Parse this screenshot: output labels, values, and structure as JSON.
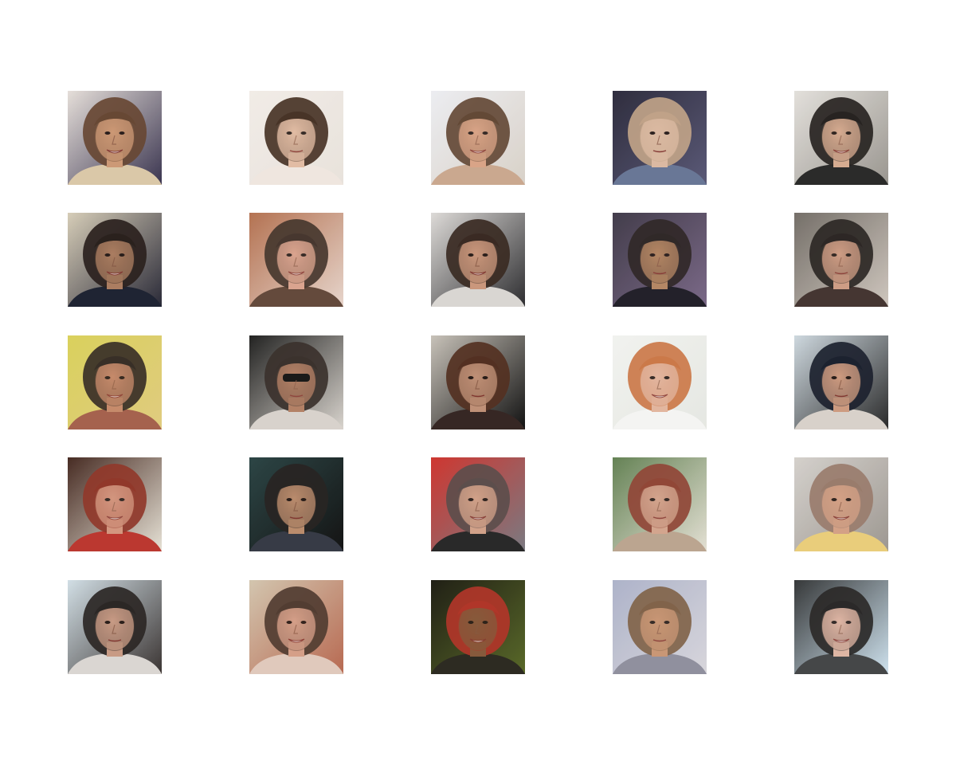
{
  "figure": {
    "rows": 5,
    "cols": 5,
    "tiles": [
      {
        "bg": "#f4eee6",
        "bg2": "#3a3550",
        "skin": "#d8a27a",
        "hair": "#6b4a32",
        "shirt": "#e8d5b0",
        "smile": true,
        "glasses": false
      },
      {
        "bg": "#f2ede8",
        "bg2": "#e9e2dc",
        "skin": "#e2b9a0",
        "hair": "#3b2518",
        "shirt": "#f0e6e0",
        "smile": false,
        "glasses": false
      },
      {
        "bg": "#eef0f4",
        "bg2": "#d9d2c8",
        "skin": "#d9a182",
        "hair": "#5a3e2a",
        "shirt": "#c9a58a",
        "smile": true,
        "glasses": false
      },
      {
        "bg": "#2c2a3a",
        "bg2": "#5b5a78",
        "skin": "#e6c2a6",
        "hair": "#c9a98a",
        "shirt": "#6b7a9a",
        "smile": false,
        "glasses": false
      },
      {
        "bg": "#e9e6e2",
        "bg2": "#9a9690",
        "skin": "#dcae92",
        "hair": "#1e1a18",
        "shirt": "#222222",
        "smile": true,
        "glasses": false
      },
      {
        "bg": "#e6dcc4",
        "bg2": "#2a2a38",
        "skin": "#b78565",
        "hair": "#2b211c",
        "shirt": "#1f2433",
        "smile": true,
        "glasses": false
      },
      {
        "bg": "#b06a48",
        "bg2": "#e7d5cc",
        "skin": "#d9a08a",
        "hair": "#3a2a22",
        "shirt": "#5a3e30",
        "smile": true,
        "glasses": false
      },
      {
        "bg": "#ece9e6",
        "bg2": "#2d2d30",
        "skin": "#d7a083",
        "hair": "#3b2a22",
        "shirt": "#e8e4e0",
        "smile": true,
        "glasses": false
      },
      {
        "bg": "#3e3a46",
        "bg2": "#7b6a88",
        "skin": "#b98a62",
        "hair": "#2a2420",
        "shirt": "#1c1c22",
        "smile": false,
        "glasses": false
      },
      {
        "bg": "#6e6862",
        "bg2": "#cfc6be",
        "skin": "#cf9a80",
        "hair": "#201a18",
        "shirt": "#3a2a26",
        "smile": false,
        "glasses": false
      },
      {
        "bg": "#d9d25a",
        "bg2": "#e0cc80",
        "skin": "#c4866a",
        "hair": "#2a2220",
        "shirt": "#a05a4a",
        "smile": true,
        "glasses": false
      },
      {
        "bg": "#141414",
        "bg2": "#d9d4ce",
        "skin": "#b07a5e",
        "hair": "#2e2420",
        "shirt": "#d8d2cc",
        "smile": false,
        "glasses": true
      },
      {
        "bg": "#d8d2c8",
        "bg2": "#121212",
        "skin": "#cf9c80",
        "hair": "#5a3424",
        "shirt": "#3a2a26",
        "smile": false,
        "glasses": false
      },
      {
        "bg": "#f2f3f0",
        "bg2": "#e6e8e2",
        "skin": "#e2b29a",
        "hair": "#c9703c",
        "shirt": "#f6f6f4",
        "smile": true,
        "glasses": false
      },
      {
        "bg": "#dde8ef",
        "bg2": "#2a2a2a",
        "skin": "#dca588",
        "hair": "#1c2230",
        "shirt": "#e8e0d8",
        "smile": false,
        "glasses": false
      },
      {
        "bg": "#3a1c14",
        "bg2": "#e7e2d6",
        "skin": "#d29078",
        "hair": "#8a2a1c",
        "shirt": "#b82a22",
        "smile": true,
        "glasses": false
      },
      {
        "bg": "#2f4a4a",
        "bg2": "#141414",
        "skin": "#c89674",
        "hair": "#2a2624",
        "shirt": "#3a3e4a",
        "smile": false,
        "glasses": false
      },
      {
        "bg": "#d6312a",
        "bg2": "#7a7a82",
        "skin": "#d8a48a",
        "hair": "#5a4a48",
        "shirt": "#222222",
        "smile": true,
        "glasses": false
      },
      {
        "bg": "#5a7a4a",
        "bg2": "#e4e0d4",
        "skin": "#d2a088",
        "hair": "#8a3a2a",
        "shirt": "#b8a08a",
        "smile": false,
        "glasses": false
      },
      {
        "bg": "#dad6d2",
        "bg2": "#9e9892",
        "skin": "#d8a286",
        "hair": "#9a7a6a",
        "shirt": "#f0d27a",
        "smile": true,
        "glasses": false
      },
      {
        "bg": "#dfeef5",
        "bg2": "#3a3432",
        "skin": "#d4a48c",
        "hair": "#2a2624",
        "shirt": "#e8e4e0",
        "smile": false,
        "glasses": false
      },
      {
        "bg": "#d6ceb8",
        "bg2": "#b86a52",
        "skin": "#d8a48e",
        "hair": "#4a3a30",
        "shirt": "#e4d2c6",
        "smile": true,
        "glasses": false
      },
      {
        "bg": "#1c1a14",
        "bg2": "#5a6a2a",
        "skin": "#8a5a3e",
        "hair": "#b8322a",
        "shirt": "#2a2622",
        "smile": true,
        "glasses": false
      },
      {
        "bg": "#aab0c8",
        "bg2": "#d8d6dc",
        "skin": "#c8926e",
        "hair": "#7a5a3e",
        "shirt": "#8a8a9a",
        "smile": false,
        "glasses": false
      },
      {
        "bg": "#2a2a2a",
        "bg2": "#cfe2ee",
        "skin": "#e0b29e",
        "hair": "#1e1a18",
        "shirt": "#3a3a3a",
        "smile": true,
        "glasses": false
      }
    ]
  }
}
